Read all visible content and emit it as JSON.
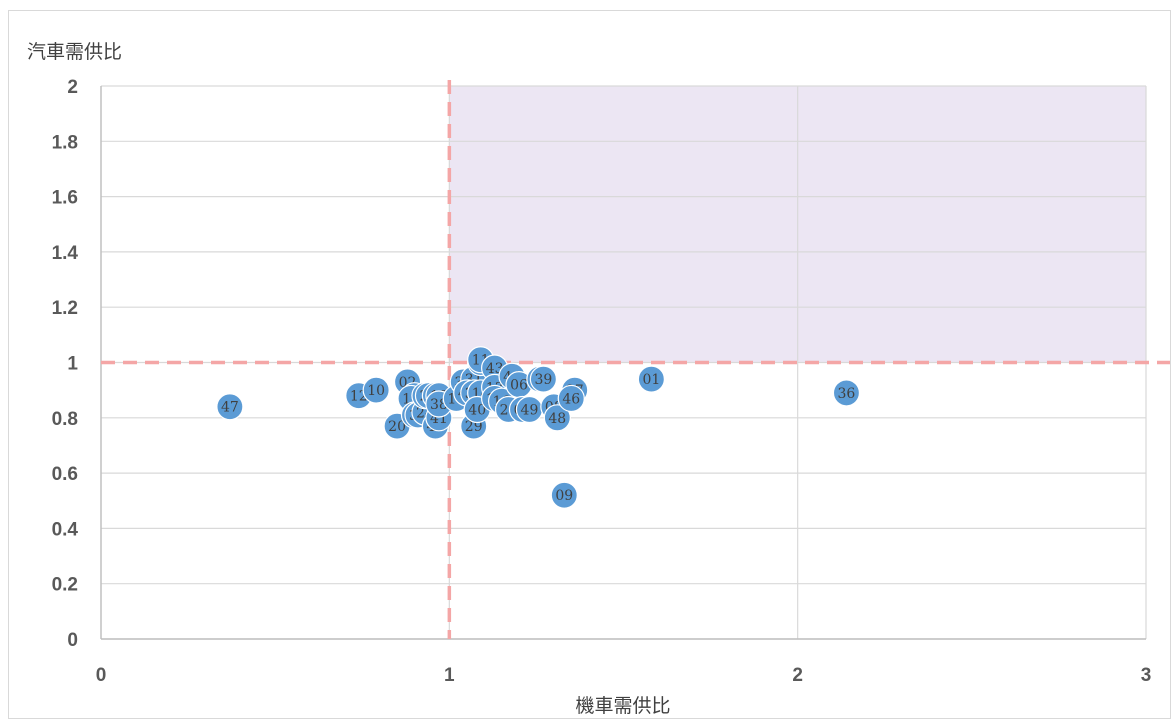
{
  "chart_data": {
    "type": "scatter",
    "title": "",
    "xlabel": "機車需供比",
    "ylabel": "汽車需供比",
    "xlim": [
      0,
      3
    ],
    "ylim": [
      0,
      2
    ],
    "x_ticks": [
      "0",
      "1",
      "2",
      "3"
    ],
    "y_ticks": [
      "0",
      "0.2",
      "0.4",
      "0.6",
      "0.8",
      "1",
      "1.2",
      "1.4",
      "1.6",
      "1.8",
      "2"
    ],
    "grid": true,
    "reference_lines": {
      "x": 1,
      "y": 1
    },
    "highlight_region": {
      "x": [
        1,
        3
      ],
      "y": [
        1,
        2
      ]
    },
    "colors": {
      "marker": "#5b9bd5",
      "reference_line": "#f4a6a6",
      "highlight": "#ece6f3",
      "grid": "#d9d9d9"
    },
    "points": [
      {
        "label": "47",
        "x": 0.37,
        "y": 0.84
      },
      {
        "label": "12",
        "x": 0.74,
        "y": 0.88
      },
      {
        "label": "10",
        "x": 0.79,
        "y": 0.9
      },
      {
        "label": "20",
        "x": 0.85,
        "y": 0.77
      },
      {
        "label": "02",
        "x": 0.88,
        "y": 0.93
      },
      {
        "label": "22",
        "x": 0.9,
        "y": 0.88
      },
      {
        "label": "19",
        "x": 0.89,
        "y": 0.87
      },
      {
        "label": "35",
        "x": 0.9,
        "y": 0.81
      },
      {
        "label": "30",
        "x": 0.91,
        "y": 0.81
      },
      {
        "label": "24",
        "x": 0.93,
        "y": 0.82
      },
      {
        "label": "32",
        "x": 0.93,
        "y": 0.88
      },
      {
        "label": "23",
        "x": 0.94,
        "y": 0.88
      },
      {
        "label": "33",
        "x": 0.96,
        "y": 0.88
      },
      {
        "label": "18",
        "x": 0.97,
        "y": 0.88
      },
      {
        "label": "45",
        "x": 0.96,
        "y": 0.77
      },
      {
        "label": "41",
        "x": 0.97,
        "y": 0.8
      },
      {
        "label": "38",
        "x": 0.97,
        "y": 0.85
      },
      {
        "label": "17",
        "x": 1.02,
        "y": 0.87
      },
      {
        "label": "34",
        "x": 1.04,
        "y": 0.93
      },
      {
        "label": "31",
        "x": 1.07,
        "y": 0.94
      },
      {
        "label": "42",
        "x": 1.05,
        "y": 0.89
      },
      {
        "label": "39",
        "x": 1.07,
        "y": 0.89
      },
      {
        "label": "14",
        "x": 1.09,
        "y": 0.89
      },
      {
        "label": "29",
        "x": 1.07,
        "y": 0.77
      },
      {
        "label": "40",
        "x": 1.08,
        "y": 0.83
      },
      {
        "label": "27",
        "x": 1.09,
        "y": 1.0
      },
      {
        "label": "11",
        "x": 1.09,
        "y": 1.01
      },
      {
        "label": "43",
        "x": 1.13,
        "y": 0.98
      },
      {
        "label": "13",
        "x": 1.13,
        "y": 0.91
      },
      {
        "label": "12b",
        "x": 1.13,
        "y": 0.87
      },
      {
        "label": "16",
        "x": 1.15,
        "y": 0.86
      },
      {
        "label": "28",
        "x": 1.17,
        "y": 0.83
      },
      {
        "label": "44",
        "x": 1.18,
        "y": 0.95
      },
      {
        "label": "06",
        "x": 1.2,
        "y": 0.92
      },
      {
        "label": "05",
        "x": 1.21,
        "y": 0.83
      },
      {
        "label": "49",
        "x": 1.23,
        "y": 0.83
      },
      {
        "label": "25",
        "x": 1.26,
        "y": 0.94
      },
      {
        "label": "39b",
        "x": 1.27,
        "y": 0.94
      },
      {
        "label": "08",
        "x": 1.3,
        "y": 0.84
      },
      {
        "label": "48",
        "x": 1.31,
        "y": 0.8
      },
      {
        "label": "37",
        "x": 1.36,
        "y": 0.9
      },
      {
        "label": "46",
        "x": 1.35,
        "y": 0.87
      },
      {
        "label": "09",
        "x": 1.33,
        "y": 0.52
      },
      {
        "label": "01",
        "x": 1.58,
        "y": 0.94
      },
      {
        "label": "36",
        "x": 2.14,
        "y": 0.89
      }
    ]
  }
}
